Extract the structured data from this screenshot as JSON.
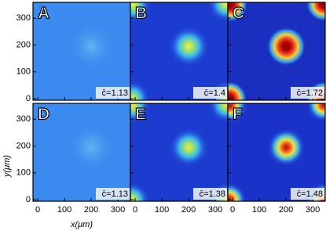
{
  "chart_data": [
    {
      "type": "heatmap",
      "label": "A",
      "annotation": "c̄=1.13",
      "xlim": [
        -18,
        347
      ],
      "ylim": [
        -6,
        359
      ],
      "xticks": [
        0,
        100,
        200,
        300
      ],
      "yticks": [
        0,
        100,
        200,
        300
      ]
    },
    {
      "type": "heatmap",
      "label": "B",
      "annotation": "c̄=1.4",
      "xlim": [
        -18,
        347
      ],
      "ylim": [
        -6,
        359
      ],
      "xticks": [
        0,
        100,
        200,
        300
      ],
      "yticks": [
        0,
        100,
        200,
        300
      ]
    },
    {
      "type": "heatmap",
      "label": "C",
      "annotation": "c̄=1.72",
      "xlim": [
        -18,
        347
      ],
      "ylim": [
        -6,
        359
      ],
      "xticks": [
        0,
        100,
        200,
        300
      ],
      "yticks": [
        0,
        100,
        200,
        300
      ]
    },
    {
      "type": "heatmap",
      "label": "D",
      "annotation": "c̄=1.13",
      "xlim": [
        -18,
        347
      ],
      "ylim": [
        -6,
        359
      ],
      "xticks": [
        0,
        100,
        200,
        300
      ],
      "yticks": [
        0,
        100,
        200,
        300
      ],
      "xlabel": "x(μm)",
      "ylabel": "y(μm)"
    },
    {
      "type": "heatmap",
      "label": "E",
      "annotation": "c̄=1.38",
      "xlim": [
        -18,
        347
      ],
      "ylim": [
        -6,
        359
      ],
      "xticks": [
        0,
        100,
        200,
        300
      ],
      "yticks": [
        0,
        100,
        200,
        300
      ]
    },
    {
      "type": "heatmap",
      "label": "F",
      "annotation": "c̄=1.48",
      "xlim": [
        -18,
        347
      ],
      "ylim": [
        -6,
        359
      ],
      "xticks": [
        0,
        100,
        200,
        300
      ],
      "yticks": [
        0,
        100,
        200,
        300
      ]
    }
  ]
}
